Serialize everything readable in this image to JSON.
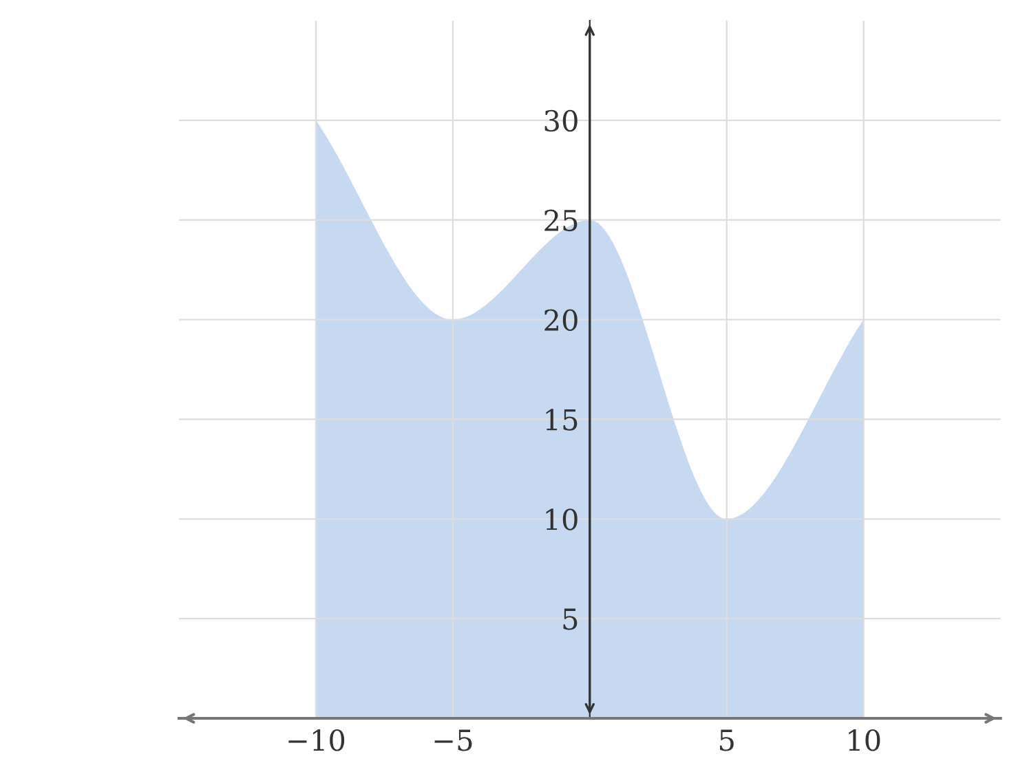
{
  "chart_data": {
    "type": "area",
    "x": [
      -10,
      -5,
      0,
      5,
      10
    ],
    "series": [
      {
        "color": "#c6d9f0",
        "values": [
          30,
          20,
          25,
          10,
          20
        ]
      }
    ],
    "xlim": [
      -15,
      15
    ],
    "ylim": [
      0,
      35
    ],
    "xticks": [
      {
        "value": -10,
        "label": "−10"
      },
      {
        "value": -5,
        "label": "−5"
      },
      5,
      10
    ],
    "yticks": [
      5,
      10,
      15,
      20,
      25,
      30
    ],
    "grid": true
  }
}
